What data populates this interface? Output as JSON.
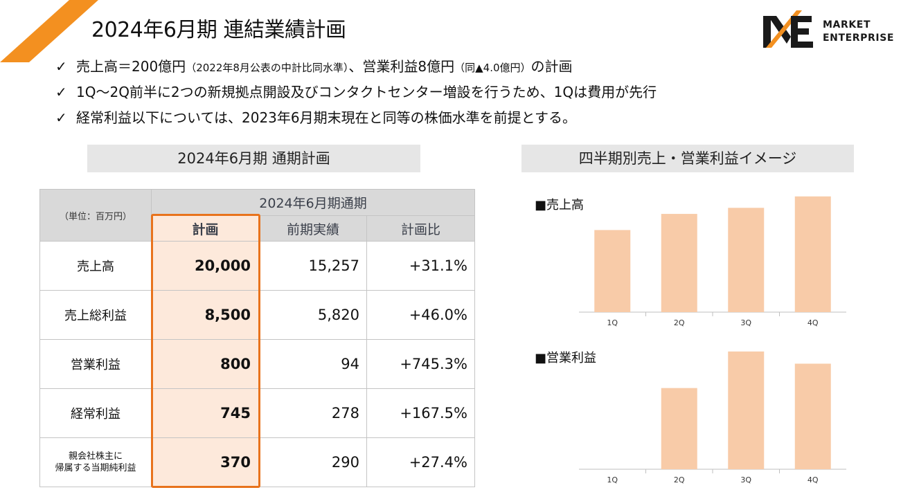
{
  "header": {
    "title": "2024年6月期 連結業績計画",
    "accent_color": "#f39020"
  },
  "logo": {
    "line1": "MARKET",
    "line2": "ENTERPRISE",
    "color": "#1a1a1a",
    "accent_color": "#f39020"
  },
  "bullets": [
    {
      "pre": "売上高＝200億円",
      "small1": "（2022年8月公表の中計比同水準）",
      "mid": "、営業利益8億円",
      "small2": "（同▲4.0億円）",
      "post": "の計画"
    },
    {
      "text": "1Q～2Q前半に2つの新規拠点開設及びコンタクトセンター増設を行うため、1Qは費用が先行"
    },
    {
      "text": "経常利益以下については、2023年6月期末現在と同等の株価水準を前提とする。"
    }
  ],
  "check_mark": "✓",
  "left_section": {
    "label": "2024年6月期 通期計画"
  },
  "right_section": {
    "label": "四半期別売上・営業利益イメージ"
  },
  "table": {
    "unit": "（単位：百万円）",
    "group_header": "2024年6月期通期",
    "columns": [
      "計画",
      "前期実績",
      "計画比"
    ],
    "rows": [
      {
        "label": "売上高",
        "plan": "20,000",
        "prev": "15,257",
        "ratio": "+31.1%"
      },
      {
        "label": "売上総利益",
        "plan": "8,500",
        "prev": "5,820",
        "ratio": "+46.0%"
      },
      {
        "label": "営業利益",
        "plan": "800",
        "prev": "94",
        "ratio": "+745.3%"
      },
      {
        "label": "経常利益",
        "plan": "745",
        "prev": "278",
        "ratio": "+167.5%"
      },
      {
        "label_line1": "親会社株主に",
        "label_line2": "帰属する当期純利益",
        "plan": "370",
        "prev": "290",
        "ratio": "+27.4%"
      }
    ],
    "highlight_color": "#e8731c",
    "plan_fill": "#fde9db"
  },
  "chart_data": [
    {
      "type": "bar",
      "title": "■売上高",
      "categories": [
        "1Q",
        "2Q",
        "3Q",
        "4Q"
      ],
      "values": [
        122,
        146,
        155,
        172
      ],
      "ylim": [
        0,
        180
      ],
      "grid": false,
      "bar_color": "#f8cba8"
    },
    {
      "type": "bar",
      "title": "■営業利益",
      "categories": [
        "1Q",
        "2Q",
        "3Q",
        "4Q"
      ],
      "values": [
        0,
        120,
        174,
        156
      ],
      "ylim": [
        0,
        180
      ],
      "grid": false,
      "bar_color": "#f8cba8"
    }
  ]
}
